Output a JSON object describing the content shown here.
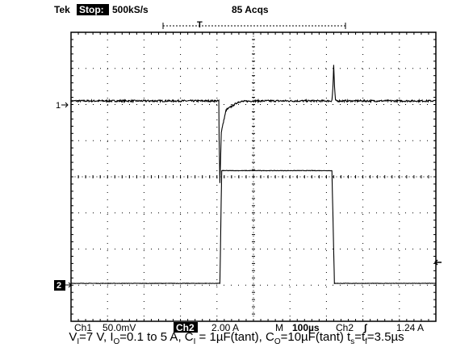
{
  "header": {
    "brand": "Tek",
    "state": "Stop:",
    "sample_rate": "500kS/s",
    "acquisitions": "85 Acqs"
  },
  "footer": {
    "ch1_label": "Ch1",
    "ch1_scale": "50.0mV",
    "ch2_label": "Ch2",
    "ch2_scale": "2.00 A",
    "timebase_label": "M",
    "timebase": "100µs",
    "trigger_source": "Ch2",
    "trigger_slope": "∫",
    "trigger_level": "1.24 A"
  },
  "markers": {
    "ch1": "1",
    "ch2": "2"
  },
  "caption": {
    "vi": "=7 V, I",
    "io": "=0.1 to 5 A, C",
    "ci": " = 1µF(tant), C",
    "co": "=10µF(tant) t",
    "ts": "=t",
    "tf": "=3.5µs"
  },
  "chart_data": {
    "type": "line",
    "title": "",
    "xlabel": "",
    "ylabel": "",
    "grid": true,
    "x_divisions": 10,
    "y_divisions": 8,
    "x_unit": "div (100µs/div)",
    "xlim": [
      0,
      10
    ],
    "ylim": [
      -4,
      4
    ],
    "series": [
      {
        "name": "1",
        "color": "#000000",
        "points": [
          [
            0,
            2.1
          ],
          [
            4.05,
            2.1
          ],
          [
            4.06,
            1.0
          ],
          [
            4.08,
            -0.15
          ],
          [
            4.12,
            1.25
          ],
          [
            4.25,
            1.85
          ],
          [
            4.6,
            2.08
          ],
          [
            5.0,
            2.1
          ],
          [
            10,
            2.1
          ]
        ],
        "spike": {
          "x": 7.2,
          "peak": 3.1
        }
      },
      {
        "name": "2",
        "color": "#000000",
        "points": [
          [
            0,
            -2.95
          ],
          [
            4.08,
            -2.95
          ],
          [
            4.13,
            0.17
          ],
          [
            7.15,
            0.17
          ],
          [
            7.22,
            -2.95
          ],
          [
            10,
            -2.95
          ]
        ]
      }
    ]
  }
}
